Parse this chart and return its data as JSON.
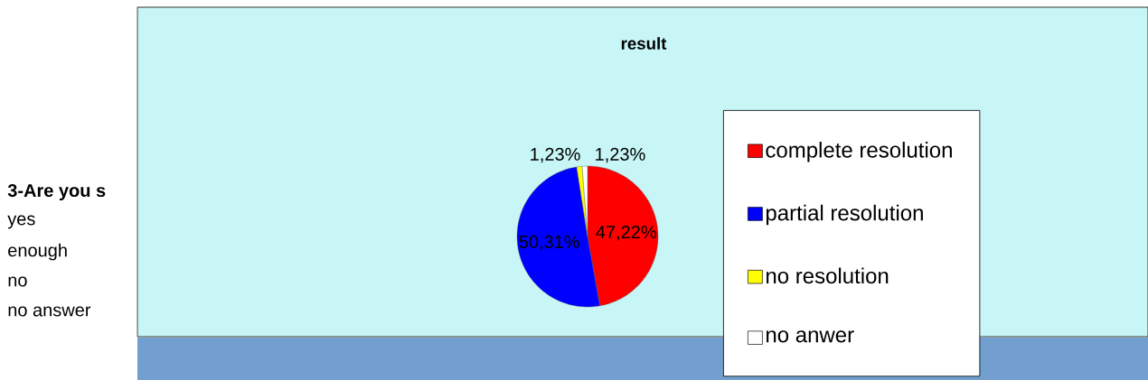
{
  "chart_data": {
    "type": "pie",
    "title": "result",
    "categories": [
      "complete resolution",
      "partial resolution",
      "no resolution",
      "no anwer"
    ],
    "values": [
      47.22,
      50.31,
      1.23,
      1.23
    ],
    "colors": [
      "#ff0000",
      "#0000ff",
      "#ffff00",
      "#ffffff"
    ],
    "value_labels": [
      "47,22%",
      "50,31%",
      "1,23%",
      "1,23%"
    ],
    "legend": "right",
    "annotations": [
      "3-Are you s",
      "yes",
      "enough",
      "no",
      "no answer"
    ]
  }
}
